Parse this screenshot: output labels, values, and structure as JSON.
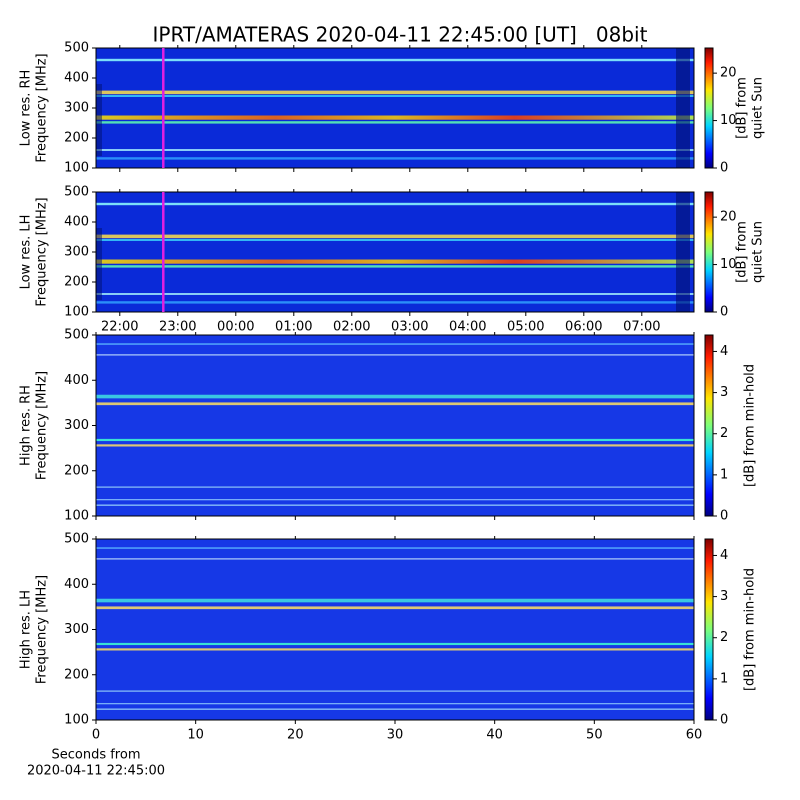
{
  "title": "IPRT/AMATERAS 2020-04-11 22:45:00 [UT]   08bit",
  "chart_data": [
    {
      "type": "spectrogram",
      "ylabel": [
        "Low res. RH",
        "Frequency [MHz]"
      ],
      "ylim": [
        100,
        500
      ],
      "yticks": [
        100,
        200,
        300,
        400,
        500
      ],
      "colorbar_label": [
        "[dB] from",
        "quiet Sun"
      ],
      "colormap": "jet",
      "clim": [
        0,
        25.3
      ],
      "cticks": [
        0,
        10,
        20
      ],
      "marker_x": 22.75,
      "marker_color": "#e020e0"
    },
    {
      "type": "spectrogram",
      "ylabel": [
        "Low res. LH",
        "Frequency [MHz]"
      ],
      "ylim": [
        100,
        500
      ],
      "yticks": [
        100,
        200,
        300,
        400,
        500
      ],
      "colorbar_label": [
        "[dB] from",
        "quiet Sun"
      ],
      "colormap": "jet",
      "clim": [
        0,
        25.3
      ],
      "cticks": [
        0,
        10,
        20
      ],
      "marker_x": 22.75,
      "marker_color": "#e020e0",
      "xlim": [
        21.59,
        31.9
      ],
      "xticks": [
        {
          "value": 22,
          "label": "22:00"
        },
        {
          "value": 23,
          "label": "23:00"
        },
        {
          "value": 24,
          "label": "00:00"
        },
        {
          "value": 25,
          "label": "01:00"
        },
        {
          "value": 26,
          "label": "02:00"
        },
        {
          "value": 27,
          "label": "03:00"
        },
        {
          "value": 28,
          "label": "04:00"
        },
        {
          "value": 29,
          "label": "05:00"
        },
        {
          "value": 30,
          "label": "06:00"
        },
        {
          "value": 31,
          "label": "07:00"
        }
      ]
    },
    {
      "type": "spectrogram",
      "ylabel": [
        "High res. RH",
        "Frequency [MHz]"
      ],
      "ylim": [
        100,
        500
      ],
      "yticks": [
        100,
        200,
        300,
        400,
        500
      ],
      "colorbar_label": [
        "[dB] from min-hold"
      ],
      "colormap": "jet",
      "clim": [
        0,
        4.4
      ],
      "cticks": [
        0,
        1,
        2,
        3,
        4
      ]
    },
    {
      "type": "spectrogram",
      "ylabel": [
        "High res. LH",
        "Frequency [MHz]"
      ],
      "ylim": [
        100,
        500
      ],
      "yticks": [
        100,
        200,
        300,
        400,
        500
      ],
      "colorbar_label": [
        "[dB] from min-hold"
      ],
      "colormap": "jet",
      "clim": [
        0,
        4.4
      ],
      "cticks": [
        0,
        1,
        2,
        3,
        4
      ],
      "xlim": [
        0,
        60
      ],
      "xticks": [
        0,
        10,
        20,
        30,
        40,
        50,
        60
      ],
      "xlabel": [
        "Seconds from",
        "2020-04-11 22:45:00"
      ]
    }
  ]
}
